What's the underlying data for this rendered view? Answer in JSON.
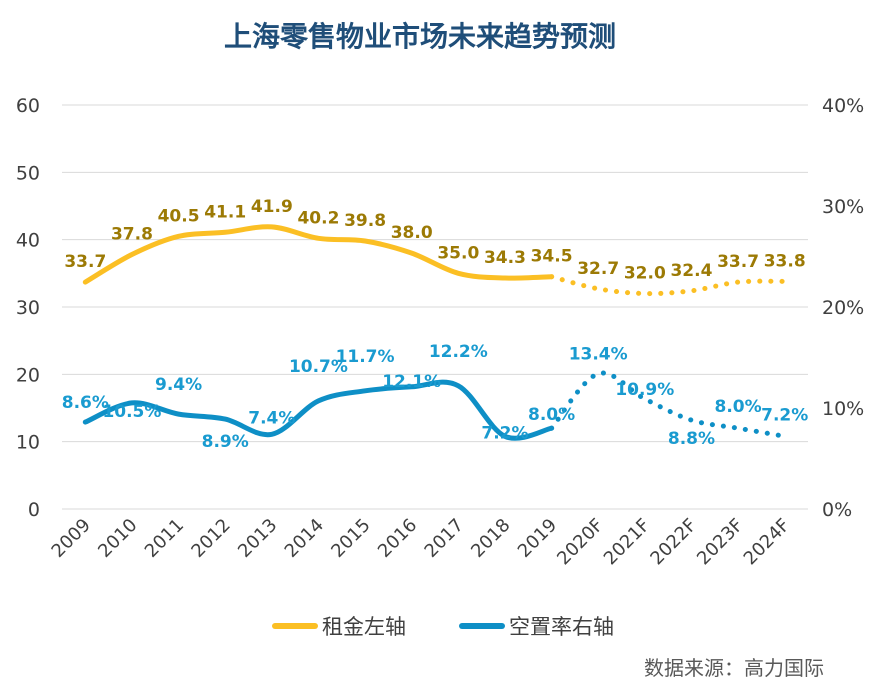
{
  "chart_data": {
    "type": "line",
    "title": "上海零售物业市场未来趋势预测",
    "categories": [
      "2009",
      "2010",
      "2011",
      "2012",
      "2013",
      "2014",
      "2015",
      "2016",
      "2017",
      "2018",
      "2019",
      "2020F",
      "2021F",
      "2022F",
      "2023F",
      "2024F"
    ],
    "forecast_start_index": 11,
    "left_axis": {
      "ylim": [
        0,
        60
      ],
      "ticks": [
        "0",
        "10",
        "20",
        "30",
        "40",
        "50",
        "60"
      ]
    },
    "right_axis": {
      "ylim": [
        0,
        40
      ],
      "ticks": [
        "0%",
        "10%",
        "20%",
        "30%",
        "40%"
      ]
    },
    "grid": true,
    "legend_position": "bottom",
    "series": [
      {
        "name": "租金左轴",
        "axis": "left",
        "color": "#fbbf24",
        "label_color": "#9c7a05",
        "values": [
          33.7,
          37.8,
          40.5,
          41.1,
          41.9,
          40.2,
          39.8,
          38.0,
          35.0,
          34.3,
          34.5,
          32.7,
          32.0,
          32.4,
          33.7,
          33.8
        ],
        "labels": [
          "33.7",
          "37.8",
          "40.5",
          "41.1",
          "41.9",
          "40.2",
          "39.8",
          "38.0",
          "35.0",
          "34.3",
          "34.5",
          "32.7",
          "32.0",
          "32.4",
          "33.7",
          "33.8"
        ]
      },
      {
        "name": "空置率右轴",
        "axis": "right",
        "color": "#0e8fc6",
        "label_color": "#1a9bd0",
        "values": [
          8.6,
          10.5,
          9.4,
          8.9,
          7.4,
          10.7,
          11.7,
          12.1,
          12.2,
          7.2,
          8.0,
          13.4,
          10.9,
          8.8,
          8.0,
          7.2
        ],
        "labels": [
          "8.6%",
          "10.5%",
          "9.4%",
          "8.9%",
          "7.4%",
          "10.7%",
          "11.7%",
          "12.1%",
          "12.2%",
          "7.2%",
          "8.0%",
          "13.4%",
          "10.9%",
          "8.8%",
          "8.0%",
          "7.2%"
        ]
      }
    ],
    "source": "数据来源：高力国际"
  }
}
